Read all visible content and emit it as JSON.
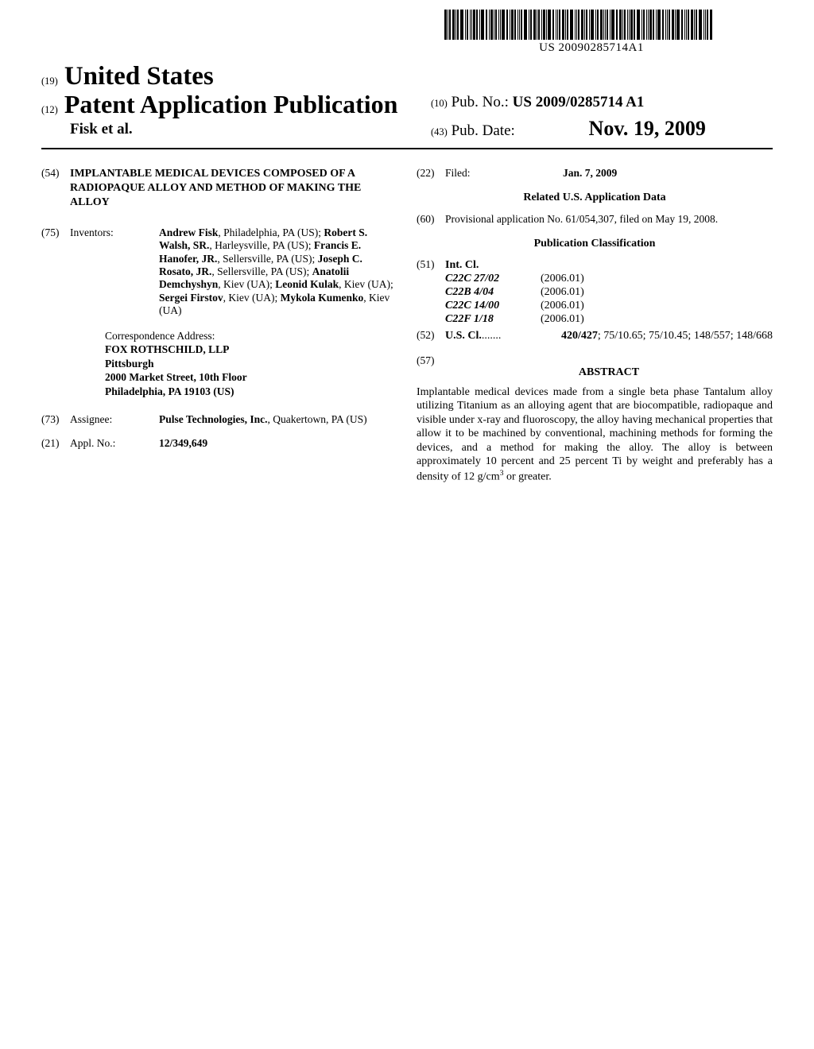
{
  "barcode_text": "US 20090285714A1",
  "header": {
    "label19": "(19)",
    "us": "United States",
    "label12": "(12)",
    "pap": "Patent Application Publication",
    "authors": "Fisk et al.",
    "label10": "(10)",
    "pubno_label": "Pub. No.:",
    "pubno": "US 2009/0285714 A1",
    "label43": "(43)",
    "pubdate_label": "Pub. Date:",
    "pubdate": "Nov. 19, 2009"
  },
  "left": {
    "n54": "(54)",
    "title": "IMPLANTABLE MEDICAL DEVICES COMPOSED OF A RADIOPAQUE ALLOY AND METHOD OF MAKING THE ALLOY",
    "n75": "(75)",
    "inventors_label": "Inventors:",
    "inventors_html": "<b>Andrew Fisk</b>, Philadelphia, PA (US); <b>Robert S. Walsh, SR.</b>, Harleysville, PA (US); <b>Francis E. Hanofer, JR.</b>, Sellersville, PA (US); <b>Joseph C. Rosato, JR.</b>, Sellersville, PA (US); <b>Anatolii Demchyshyn</b>, Kiev (UA); <b>Leonid Kulak</b>, Kiev (UA); <b>Sergei Firstov</b>, Kiev (UA); <b>Mykola Kumenko</b>, Kiev (UA)",
    "corr_label": "Correspondence Address:",
    "corr_l1": "FOX ROTHSCHILD, LLP",
    "corr_l2": "Pittsburgh",
    "corr_l3": "2000 Market Street, 10th Floor",
    "corr_l4": "Philadelphia, PA 19103 (US)",
    "n73": "(73)",
    "assignee_label": "Assignee:",
    "assignee_html": "<b>Pulse Technologies, Inc.</b>, Quakertown, PA (US)",
    "n21": "(21)",
    "applno_label": "Appl. No.:",
    "applno": "12/349,649"
  },
  "right": {
    "n22": "(22)",
    "filed_label": "Filed:",
    "filed": "Jan. 7, 2009",
    "related_head": "Related U.S. Application Data",
    "n60": "(60)",
    "related_text": "Provisional application No. 61/054,307, filed on May 19, 2008.",
    "pubclass_head": "Publication Classification",
    "n51": "(51)",
    "intcl_label": "Int. Cl.",
    "intcl": [
      {
        "code": "C22C 27/02",
        "year": "(2006.01)"
      },
      {
        "code": "C22B 4/04",
        "year": "(2006.01)"
      },
      {
        "code": "C22C 14/00",
        "year": "(2006.01)"
      },
      {
        "code": "C22F 1/18",
        "year": "(2006.01)"
      }
    ],
    "n52": "(52)",
    "uscl_label": "U.S. Cl.",
    "uscl_dots": " ....... ",
    "uscl_html": "<b>420/427</b>; 75/10.65; 75/10.45; 148/557; 148/668",
    "n57": "(57)",
    "abstract_label": "ABSTRACT",
    "abstract": "Implantable medical devices made from a single beta phase Tantalum alloy utilizing Titanium as an alloying agent that are biocompatible, radiopaque and visible under x-ray and fluoroscopy, the alloy having mechanical properties that allow it to be machined by conventional, machining methods for forming the devices, and a method for making the alloy. The alloy is between approximately 10 percent and 25 percent Ti by weight and preferably has a density of 12 g/cm³ or greater."
  }
}
